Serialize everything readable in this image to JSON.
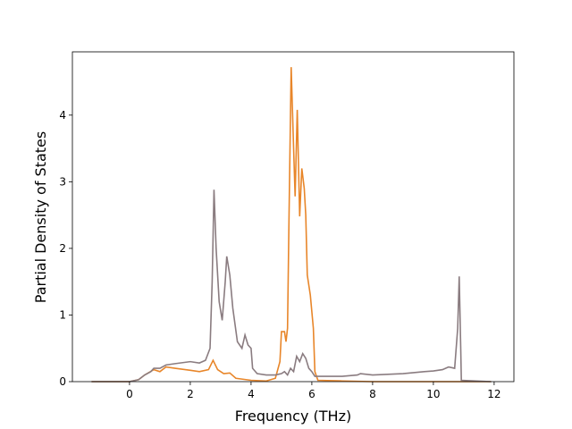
{
  "chart_data": {
    "type": "line",
    "xlabel": "Frequency (THz)",
    "ylabel": "Partial Density of States",
    "xlim": [
      -1.88,
      12.65
    ],
    "ylim": [
      0,
      4.95
    ],
    "xticks": [
      0,
      2,
      4,
      6,
      8,
      10,
      12
    ],
    "yticks": [
      0,
      1,
      2,
      3,
      4
    ],
    "series": [
      {
        "color": "#e8862a",
        "x": [
          -1.25,
          0,
          0.3,
          0.5,
          0.8,
          1.0,
          1.2,
          1.5,
          2.0,
          2.3,
          2.6,
          2.75,
          2.9,
          3.1,
          3.3,
          3.5,
          4.0,
          4.5,
          4.8,
          4.95,
          5.0,
          5.1,
          5.15,
          5.2,
          5.25,
          5.32,
          5.4,
          5.45,
          5.52,
          5.6,
          5.67,
          5.75,
          5.8,
          5.85,
          5.95,
          6.05,
          6.1,
          6.2,
          7.0,
          8.0,
          11.9
        ],
        "values": [
          0,
          0,
          0.03,
          0.1,
          0.18,
          0.15,
          0.22,
          0.2,
          0.17,
          0.15,
          0.18,
          0.32,
          0.18,
          0.12,
          0.13,
          0.05,
          0.02,
          0.01,
          0.05,
          0.3,
          0.75,
          0.75,
          0.6,
          0.8,
          2.5,
          4.72,
          3.5,
          2.78,
          4.08,
          2.48,
          3.2,
          2.9,
          2.5,
          1.6,
          1.3,
          0.8,
          0.15,
          0.02,
          0.01,
          0,
          0
        ]
      },
      {
        "color": "#8a7c80",
        "x": [
          -1.25,
          0,
          0.3,
          0.5,
          0.7,
          0.8,
          1.0,
          1.2,
          1.5,
          2.0,
          2.3,
          2.5,
          2.65,
          2.72,
          2.78,
          2.85,
          2.95,
          3.05,
          3.15,
          3.2,
          3.3,
          3.4,
          3.55,
          3.7,
          3.8,
          3.9,
          4.0,
          4.05,
          4.2,
          4.5,
          4.8,
          5.0,
          5.1,
          5.2,
          5.3,
          5.4,
          5.5,
          5.6,
          5.7,
          5.8,
          5.9,
          6.0,
          6.1,
          7.0,
          7.5,
          7.6,
          8.0,
          9.0,
          9.7,
          10.0,
          10.3,
          10.5,
          10.7,
          10.8,
          10.85,
          10.9,
          10.92,
          11.9
        ],
        "values": [
          0,
          0,
          0.03,
          0.1,
          0.15,
          0.2,
          0.2,
          0.25,
          0.27,
          0.3,
          0.28,
          0.32,
          0.5,
          1.5,
          2.88,
          2.0,
          1.2,
          0.92,
          1.5,
          1.88,
          1.6,
          1.1,
          0.6,
          0.5,
          0.7,
          0.55,
          0.5,
          0.2,
          0.12,
          0.1,
          0.1,
          0.12,
          0.15,
          0.1,
          0.2,
          0.15,
          0.38,
          0.3,
          0.42,
          0.35,
          0.2,
          0.15,
          0.08,
          0.08,
          0.1,
          0.12,
          0.1,
          0.12,
          0.15,
          0.16,
          0.18,
          0.22,
          0.2,
          0.8,
          1.58,
          0.5,
          0.02,
          0
        ]
      }
    ]
  }
}
